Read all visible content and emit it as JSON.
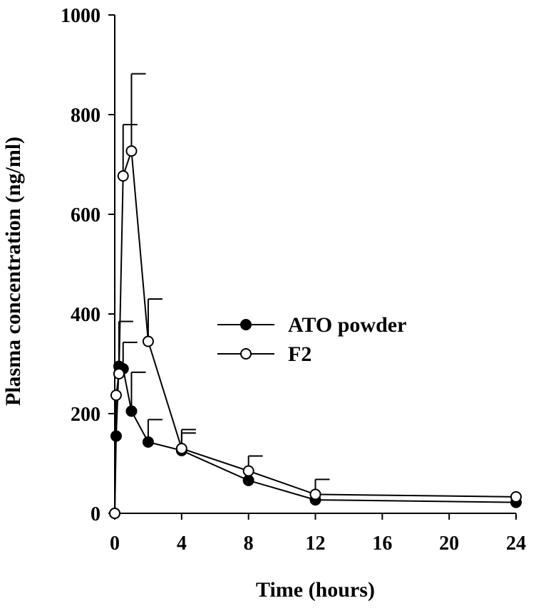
{
  "chart_data": {
    "type": "line",
    "xlabel": "Time (hours)",
    "ylabel": "Plasma concentration (ng/ml)",
    "xlim": [
      0,
      24
    ],
    "ylim": [
      0,
      1000
    ],
    "xticks": [
      0,
      4,
      8,
      12,
      16,
      20,
      24
    ],
    "yticks": [
      0,
      200,
      400,
      600,
      800,
      1000
    ],
    "x_tick_labels": [
      "0",
      "4",
      "8",
      "12",
      "16",
      "20",
      "24"
    ],
    "y_tick_labels": [
      "0",
      "200",
      "400",
      "600",
      "800",
      "1000"
    ],
    "legend_position": "center-right",
    "grid": false,
    "series": [
      {
        "name": "ATO powder",
        "marker": "filled-circle",
        "color": "#000000",
        "x": [
          0,
          0.083,
          0.25,
          0.5,
          1,
          2,
          4,
          8,
          12,
          24
        ],
        "y": [
          0,
          155,
          295,
          290,
          205,
          143,
          126,
          66,
          27,
          22
        ],
        "err": [
          0,
          0,
          90,
          53,
          78,
          45,
          35,
          0,
          0,
          0
        ]
      },
      {
        "name": "F2",
        "marker": "open-circle",
        "color": "#000000",
        "x": [
          0,
          0.083,
          0.25,
          0.5,
          1,
          2,
          4,
          8,
          12,
          24
        ],
        "y": [
          0,
          237,
          280,
          677,
          727,
          345,
          130,
          85,
          38,
          33
        ],
        "err": [
          0,
          0,
          0,
          103,
          155,
          85,
          38,
          30,
          30,
          0
        ]
      }
    ]
  }
}
